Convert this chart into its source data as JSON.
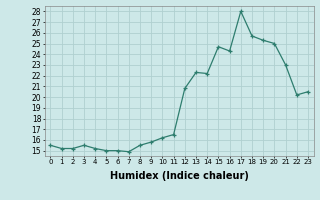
{
  "x": [
    0,
    1,
    2,
    3,
    4,
    5,
    6,
    7,
    8,
    9,
    10,
    11,
    12,
    13,
    14,
    15,
    16,
    17,
    18,
    19,
    20,
    21,
    22,
    23
  ],
  "y": [
    15.5,
    15.2,
    15.2,
    15.5,
    15.2,
    15.0,
    15.0,
    14.9,
    15.5,
    15.8,
    16.2,
    16.5,
    20.8,
    22.3,
    22.2,
    24.7,
    24.3,
    28.0,
    25.7,
    25.3,
    25.0,
    23.0,
    20.2,
    20.5
  ],
  "xlim": [
    -0.5,
    23.5
  ],
  "ylim": [
    14.5,
    28.5
  ],
  "yticks": [
    15,
    16,
    17,
    18,
    19,
    20,
    21,
    22,
    23,
    24,
    25,
    26,
    27,
    28
  ],
  "xticks": [
    0,
    1,
    2,
    3,
    4,
    5,
    6,
    7,
    8,
    9,
    10,
    11,
    12,
    13,
    14,
    15,
    16,
    17,
    18,
    19,
    20,
    21,
    22,
    23
  ],
  "xlabel": "Humidex (Indice chaleur)",
  "line_color": "#2e7d6e",
  "bg_color": "#cde8e8",
  "grid_color": "#b0d0d0",
  "marker": "+",
  "ytick_fontsize": 5.5,
  "xtick_fontsize": 5.0,
  "xlabel_fontsize": 7.0
}
